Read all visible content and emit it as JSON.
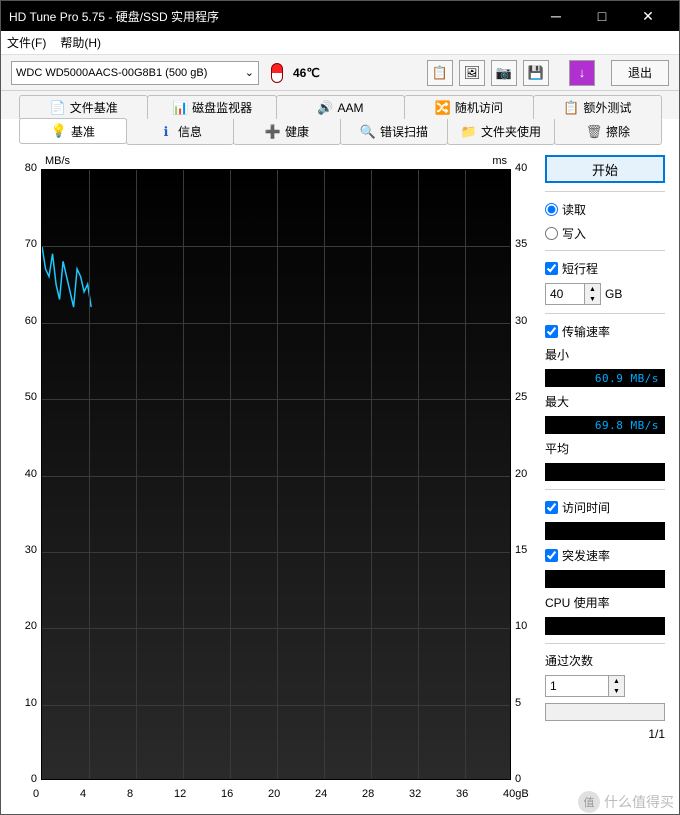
{
  "window": {
    "title": "HD Tune Pro 5.75 - 硬盘/SSD 实用程序"
  },
  "menu": {
    "file": "文件(F)",
    "help": "帮助(H)"
  },
  "toolbar": {
    "drive": "WDC WD5000AACS-00G8B1 (500 gB)",
    "temp": "46℃",
    "exit": "退出"
  },
  "tabs_upper": [
    {
      "icon": "📄",
      "label": "文件基准",
      "color": "#c040c0"
    },
    {
      "icon": "📊",
      "label": "磁盘监视器",
      "color": "#2a8a2a"
    },
    {
      "icon": "🔊",
      "label": "AAM",
      "color": "#e0b000"
    },
    {
      "icon": "🔀",
      "label": "随机访问",
      "color": "#b08040"
    },
    {
      "icon": "📋",
      "label": "额外测试",
      "color": "#2a8a2a"
    }
  ],
  "tabs_lower": [
    {
      "icon": "💡",
      "label": "基准",
      "active": true,
      "color": "#e0b000"
    },
    {
      "icon": "ℹ",
      "label": "信息",
      "color": "#2060c0"
    },
    {
      "icon": "➕",
      "label": "健康",
      "color": "#d03030"
    },
    {
      "icon": "🔍",
      "label": "错误扫描",
      "color": "#2a8a2a"
    },
    {
      "icon": "📁",
      "label": "文件夹使用",
      "color": "#e0b000"
    },
    {
      "icon": "🗑",
      "label": "擦除",
      "color": "#606060"
    }
  ],
  "chart": {
    "y_left_label": "MB/s",
    "y_right_label": "ms",
    "x_label_suffix": "gB",
    "y_left": {
      "min": 0,
      "max": 80,
      "step": 10
    },
    "y_right": {
      "min": 0,
      "max": 40,
      "step": 5
    },
    "x": {
      "min": 0,
      "max": 40,
      "step": 4
    },
    "bg_top": "#000000",
    "bg_bottom": "#2e2e2e",
    "grid_color": "#3a3a3a",
    "line_color": "#1ec8ff",
    "series_x": [
      0,
      0.3,
      0.6,
      0.9,
      1.2,
      1.5,
      1.8,
      2.1,
      2.4,
      2.7,
      3.0,
      3.3,
      3.6,
      3.9,
      4.2
    ],
    "series_y": [
      70,
      67,
      66,
      69,
      65,
      63,
      68,
      66,
      64,
      62,
      67,
      66,
      64,
      65,
      62
    ]
  },
  "side": {
    "start": "开始",
    "read": "读取",
    "write": "写入",
    "short_stroke": "短行程",
    "short_val": "40",
    "short_unit": "GB",
    "xfer_rate": "传输速率",
    "min_lbl": "最小",
    "min_val": "60.9 MB/s",
    "max_lbl": "最大",
    "max_val": "69.8 MB/s",
    "avg_lbl": "平均",
    "avg_val": "",
    "access_time": "访问时间",
    "access_val": "",
    "burst_rate": "突发速率",
    "burst_val": "",
    "cpu_usage": "CPU 使用率",
    "cpu_val": "",
    "passes": "通过次数",
    "passes_val": "1",
    "passes_frac": "1/1"
  },
  "watermark": "什么值得买"
}
